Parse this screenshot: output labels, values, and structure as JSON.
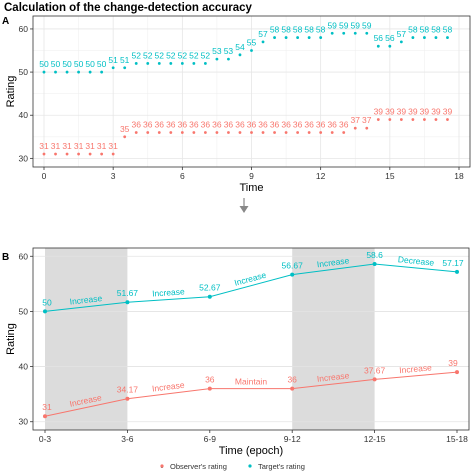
{
  "figure": {
    "title": "Calculation of the change-detection accuracy",
    "colors": {
      "observer": "#F8766D",
      "target": "#00BFC4",
      "shade": "#dcdcdc",
      "arrow": "#888888"
    }
  },
  "chart_data": [
    {
      "panel": "A",
      "type": "scatter",
      "xlabel": "Time",
      "ylabel": "Rating",
      "xlim": [
        0,
        18
      ],
      "ylim": [
        28,
        63
      ],
      "xticks": [
        "0",
        "3",
        "6",
        "9",
        "12",
        "15",
        "18"
      ],
      "yticks": [
        "30",
        "40",
        "50",
        "60"
      ],
      "grid": true,
      "x": [
        0,
        0.5,
        1,
        1.5,
        2,
        2.5,
        3,
        3.5,
        4,
        4.5,
        5,
        5.5,
        6,
        6.5,
        7,
        7.5,
        8,
        8.5,
        9,
        9.5,
        10,
        10.5,
        11,
        11.5,
        12,
        12.5,
        13,
        13.5,
        14,
        14.5,
        15,
        15.5,
        16,
        16.5,
        17,
        17.5
      ],
      "series": [
        {
          "name": "Observer's rating",
          "values": [
            31,
            31,
            31,
            31,
            31,
            31,
            31,
            35,
            36,
            36,
            36,
            36,
            36,
            36,
            36,
            36,
            36,
            36,
            36,
            36,
            36,
            36,
            36,
            36,
            36,
            36,
            36,
            37,
            37,
            39,
            39,
            39,
            39,
            39,
            39,
            39
          ]
        },
        {
          "name": "Target's rating",
          "values": [
            50,
            50,
            50,
            50,
            50,
            50,
            51,
            51,
            52,
            52,
            52,
            52,
            52,
            52,
            52,
            53,
            53,
            54,
            55,
            57,
            58,
            58,
            58,
            58,
            58,
            59,
            59,
            59,
            59,
            56,
            56,
            57,
            58,
            58,
            58,
            58
          ]
        }
      ]
    },
    {
      "panel": "B",
      "type": "line",
      "xlabel": "Time (epoch)",
      "ylabel": "Rating",
      "ylim": [
        28.5,
        61.5
      ],
      "categories": [
        "0-3",
        "3-6",
        "6-9",
        "9-12",
        "12-15",
        "15-18"
      ],
      "yticks": [
        "30",
        "40",
        "50",
        "60"
      ],
      "shaded_epochs": [
        "0-3",
        "3-6",
        "9-12",
        "12-15"
      ],
      "series": [
        {
          "name": "Observer's rating",
          "values": [
            31,
            34.17,
            36,
            36,
            37.67,
            39
          ],
          "labels": [
            "31",
            "34.17",
            "36",
            "36",
            "37.67",
            "39"
          ],
          "changes": [
            "Increase",
            "Increase",
            "Maintain",
            "Increase",
            "Increase"
          ]
        },
        {
          "name": "Target's rating",
          "values": [
            50,
            51.67,
            52.67,
            56.67,
            58.6,
            57.17
          ],
          "labels": [
            "50",
            "51.67",
            "52.67",
            "56.67",
            "58.6",
            "57.17"
          ],
          "changes": [
            "Increase",
            "Increase",
            "Increase",
            "Increase",
            "Decrease"
          ]
        }
      ],
      "legend": {
        "position": "bottom",
        "entries": [
          "Observer's rating",
          "Target's rating"
        ]
      }
    }
  ]
}
